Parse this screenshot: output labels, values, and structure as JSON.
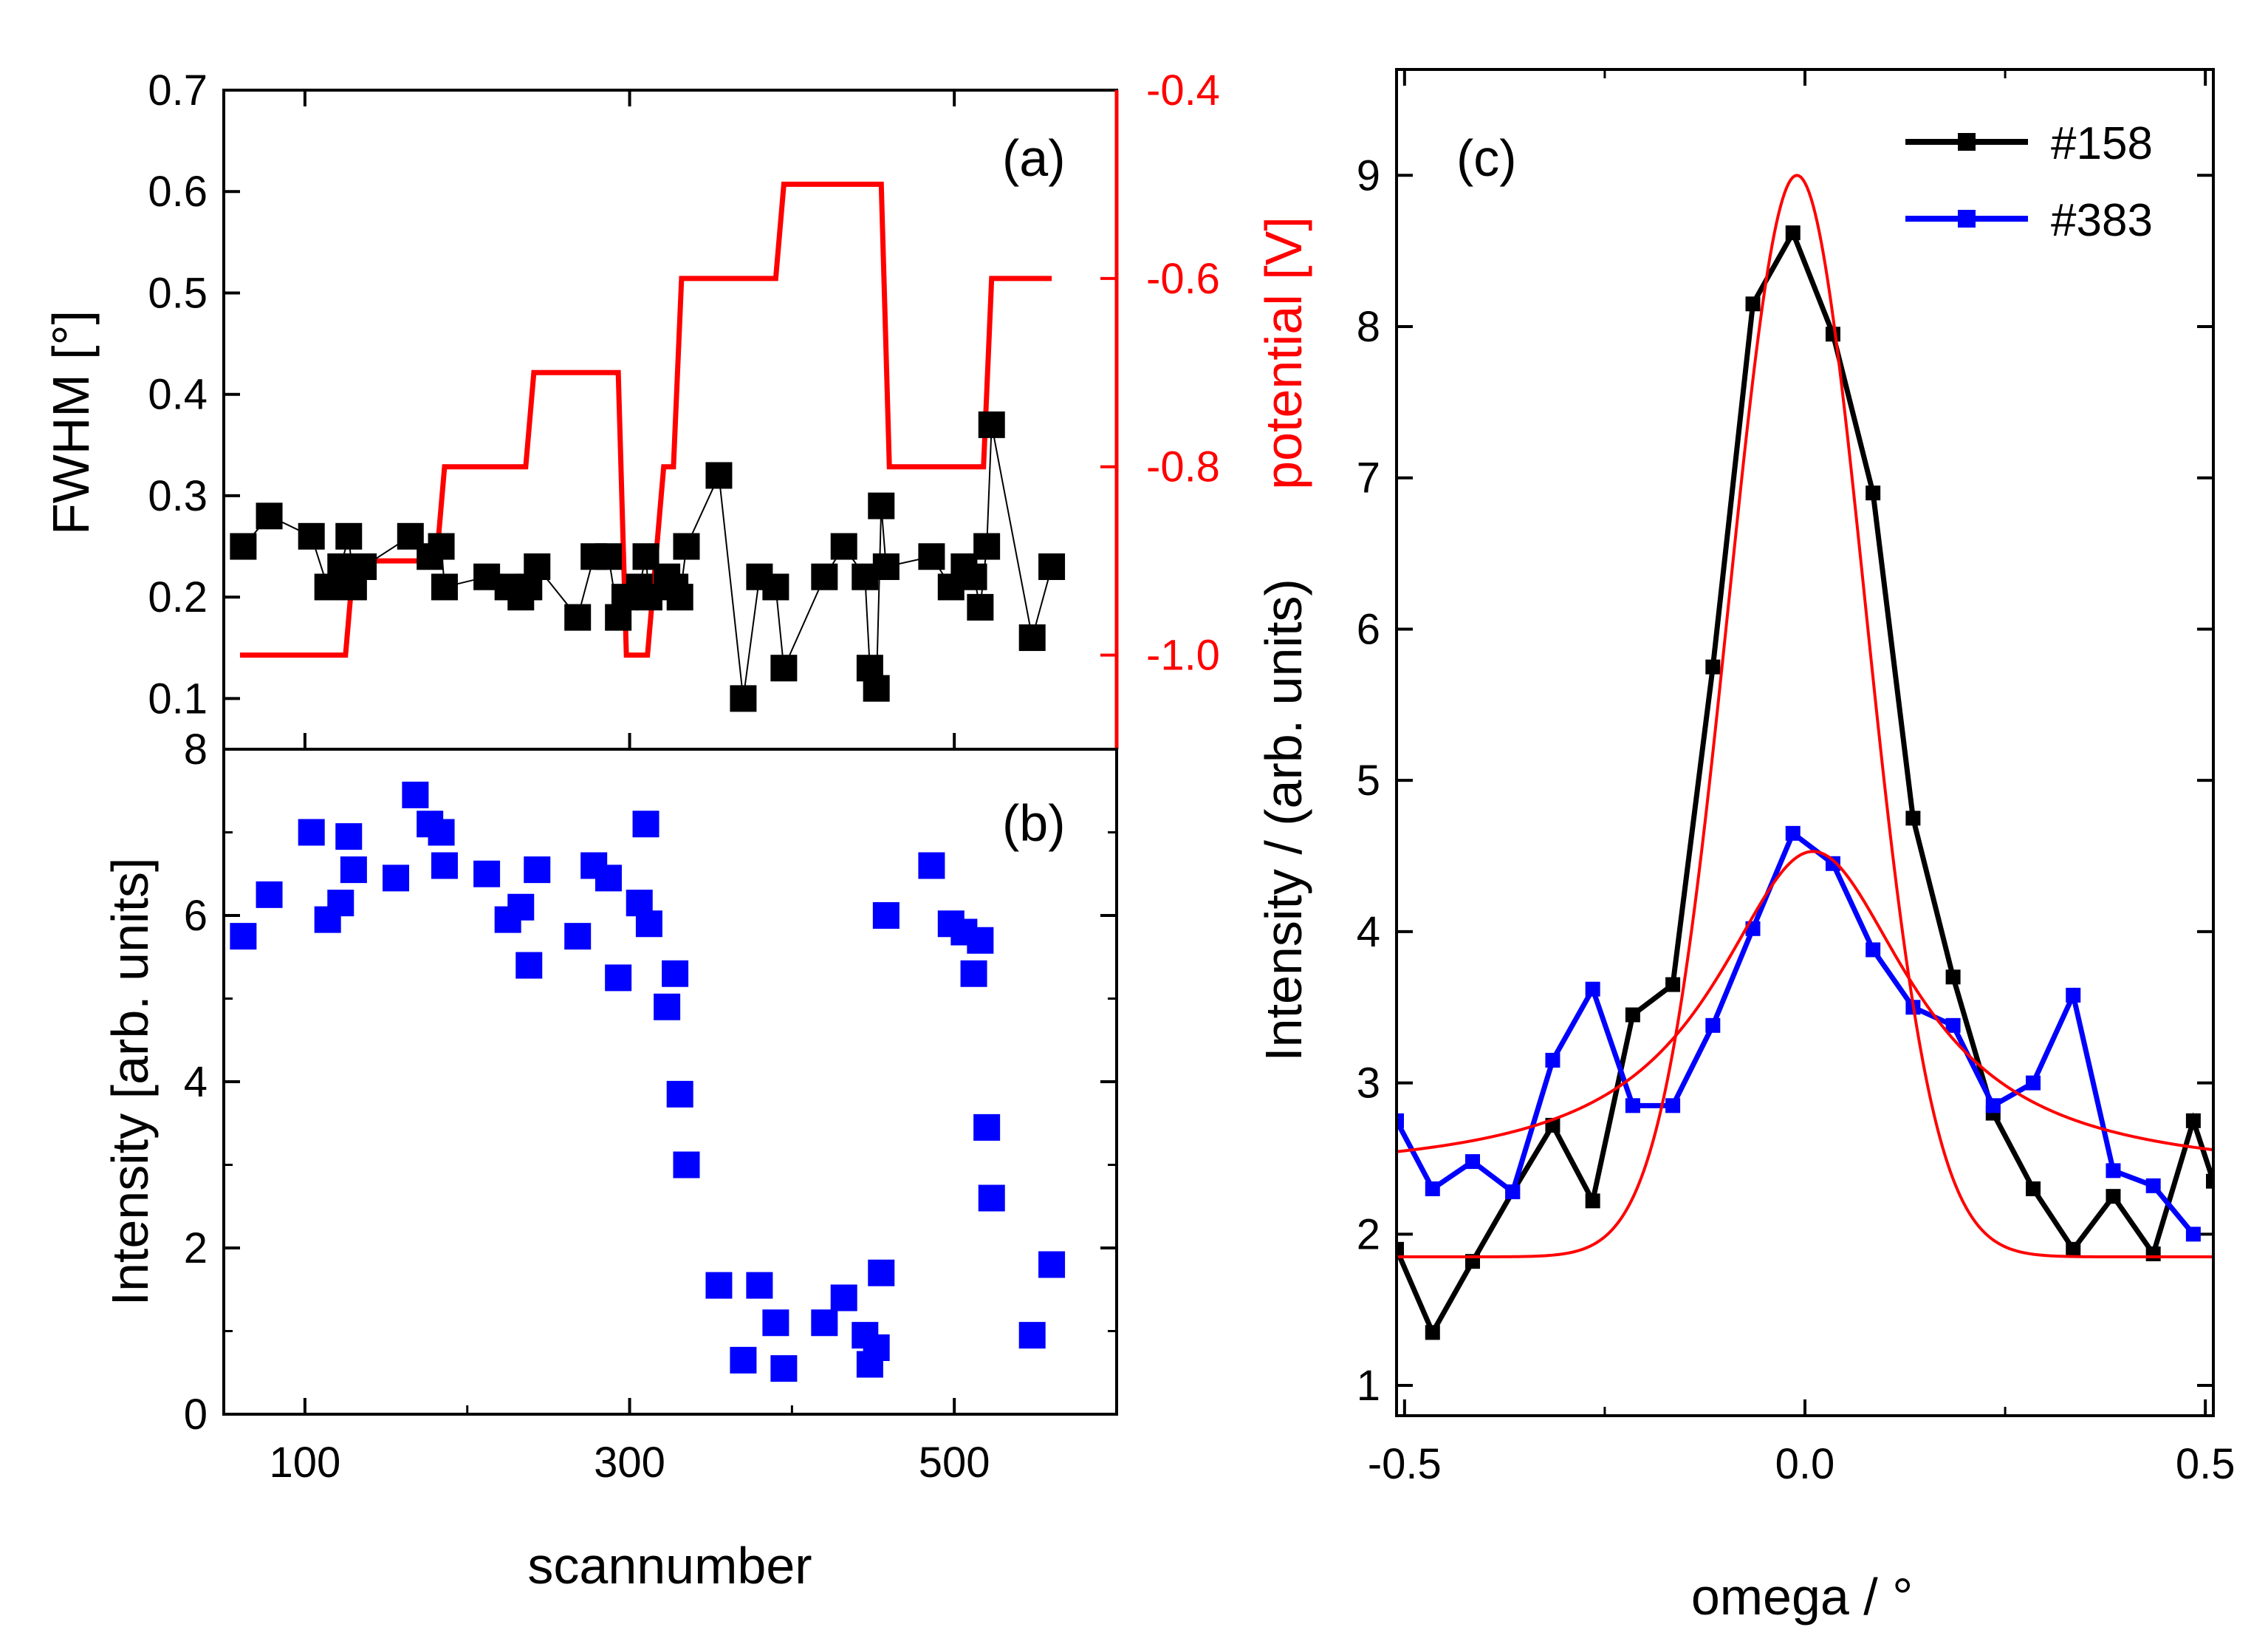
{
  "chart_data": [
    {
      "id": "a",
      "type": "scatter",
      "panel_label": "(a)",
      "ylabel": "FWHM [°]",
      "ylabel_right": "potential [V]",
      "ylim": [
        0.05,
        0.7
      ],
      "ylim_right": [
        -1.1,
        -0.4
      ],
      "xlim": [
        50,
        600
      ],
      "yticks": [
        0.1,
        0.2,
        0.3,
        0.4,
        0.5,
        0.6,
        0.7
      ],
      "yticks_right": [
        -1.0,
        -0.8,
        -0.6,
        -0.4
      ],
      "ytick_labels_right": [
        "-1.0",
        "-0.8",
        "-0.6",
        "-0.4"
      ],
      "colors": {
        "fwhm": "#000000",
        "potential": "#ff0000"
      },
      "series": [
        {
          "name": "FWHM",
          "axis": "left",
          "style": "markers+thin-line",
          "x": [
            62,
            78,
            104,
            114,
            122,
            127,
            130,
            136,
            165,
            177,
            184,
            186,
            212,
            225,
            233,
            238,
            243,
            268,
            278,
            287,
            293,
            297,
            306,
            310,
            312,
            323,
            328,
            331,
            335,
            355,
            370,
            380,
            390,
            395,
            420,
            432,
            445,
            448,
            452,
            455,
            458,
            486,
            498,
            506,
            512,
            516,
            520,
            523,
            548,
            560
          ],
          "y": [
            0.25,
            0.28,
            0.26,
            0.21,
            0.23,
            0.26,
            0.21,
            0.23,
            0.26,
            0.24,
            0.25,
            0.21,
            0.22,
            0.21,
            0.2,
            0.21,
            0.23,
            0.18,
            0.24,
            0.24,
            0.18,
            0.2,
            0.21,
            0.24,
            0.2,
            0.22,
            0.21,
            0.2,
            0.25,
            0.32,
            0.1,
            0.22,
            0.21,
            0.13,
            0.22,
            0.25,
            0.22,
            0.13,
            0.11,
            0.29,
            0.23,
            0.24,
            0.21,
            0.23,
            0.22,
            0.19,
            0.25,
            0.37,
            0.16,
            0.23
          ]
        },
        {
          "name": "potential",
          "axis": "right",
          "style": "step-line",
          "x": [
            60,
            125,
            130,
            181,
            186,
            236,
            241,
            293,
            298,
            311,
            321,
            327,
            332,
            390,
            395,
            455,
            460,
            518,
            523,
            560
          ],
          "y": [
            -1.0,
            -1.0,
            -0.9,
            -0.9,
            -0.8,
            -0.8,
            -0.7,
            -0.7,
            -1.0,
            -1.0,
            -0.8,
            -0.8,
            -0.6,
            -0.6,
            -0.5,
            -0.5,
            -0.8,
            -0.8,
            -0.6,
            -0.6
          ]
        }
      ]
    },
    {
      "id": "b",
      "type": "scatter",
      "panel_label": "(b)",
      "xlabel": "scannumber",
      "ylabel": "Intensity [arb. units]",
      "xlim": [
        50,
        600
      ],
      "ylim": [
        0,
        8
      ],
      "xticks": [
        100,
        300,
        500
      ],
      "yticks": [
        0,
        2,
        4,
        6,
        8
      ],
      "colors": {
        "intensity": "#0000ff"
      },
      "series": [
        {
          "name": "Intensity",
          "x": [
            62,
            78,
            104,
            114,
            122,
            127,
            130,
            156,
            168,
            177,
            184,
            186,
            212,
            225,
            233,
            238,
            243,
            268,
            278,
            287,
            293,
            306,
            310,
            312,
            323,
            328,
            331,
            335,
            355,
            370,
            380,
            390,
            395,
            420,
            432,
            445,
            448,
            452,
            455,
            458,
            486,
            498,
            506,
            512,
            516,
            520,
            523,
            548,
            560
          ],
          "y": [
            5.75,
            6.25,
            7.0,
            5.95,
            6.15,
            6.95,
            6.55,
            6.45,
            7.45,
            7.1,
            7.0,
            6.6,
            6.5,
            5.95,
            6.1,
            5.4,
            6.55,
            5.75,
            6.6,
            6.45,
            5.25,
            6.15,
            7.1,
            5.9,
            4.9,
            5.3,
            3.85,
            3.0,
            1.55,
            0.65,
            1.55,
            1.1,
            0.55,
            1.1,
            1.4,
            0.95,
            0.6,
            0.8,
            1.7,
            6.0,
            6.6,
            5.9,
            5.8,
            5.3,
            5.7,
            3.45,
            2.6,
            0.95,
            1.8
          ]
        }
      ]
    },
    {
      "id": "c",
      "type": "line",
      "panel_label": "(c)",
      "xlabel": "omega / °",
      "ylabel": "Intensity / (arb. units)",
      "xlim": [
        -0.51,
        0.51
      ],
      "ylim": [
        0.8,
        9.7
      ],
      "xticks": [
        -0.5,
        0.0,
        0.5
      ],
      "xtick_labels": [
        "-0.5",
        "0.0",
        "0.5"
      ],
      "yticks": [
        1,
        2,
        3,
        4,
        5,
        6,
        7,
        8,
        9
      ],
      "colors": {
        "s158": "#000000",
        "s383": "#0000ff",
        "fit": "#ff0000"
      },
      "legend": {
        "position": "top-right",
        "entries": [
          "#158",
          "#383"
        ]
      },
      "series": [
        {
          "name": "#158",
          "x": [
            -0.51,
            -0.465,
            -0.415,
            -0.365,
            -0.315,
            -0.265,
            -0.215,
            -0.165,
            -0.115,
            -0.065,
            -0.015,
            0.035,
            0.085,
            0.135,
            0.185,
            0.235,
            0.285,
            0.335,
            0.385,
            0.435,
            0.485,
            0.51
          ],
          "y": [
            1.9,
            1.35,
            1.82,
            2.28,
            2.72,
            2.22,
            3.45,
            3.65,
            5.75,
            8.15,
            8.62,
            7.95,
            6.9,
            4.75,
            3.7,
            2.8,
            2.3,
            1.9,
            2.25,
            1.87,
            2.75,
            2.35
          ]
        },
        {
          "name": "#383",
          "x": [
            -0.51,
            -0.465,
            -0.415,
            -0.365,
            -0.315,
            -0.265,
            -0.215,
            -0.165,
            -0.115,
            -0.065,
            -0.015,
            0.035,
            0.085,
            0.135,
            0.185,
            0.235,
            0.285,
            0.335,
            0.385,
            0.435,
            0.485
          ],
          "y": [
            2.75,
            2.3,
            2.48,
            2.28,
            3.15,
            3.62,
            2.85,
            2.85,
            3.38,
            4.02,
            4.65,
            4.45,
            3.88,
            3.5,
            3.38,
            2.85,
            3.0,
            3.58,
            2.42,
            2.32,
            2.0
          ]
        },
        {
          "name": "fit #158",
          "kind": "gaussian-fit",
          "center": -0.01,
          "amplitude": 7.15,
          "width": 0.085,
          "baseline": 1.85,
          "slope": 0.0
        },
        {
          "name": "fit #383",
          "kind": "lorentzian-fit",
          "center": 0.01,
          "amplitude": 2.15,
          "hwhm": 0.15,
          "baseline": 2.38,
          "slope": 0.0
        }
      ]
    }
  ]
}
